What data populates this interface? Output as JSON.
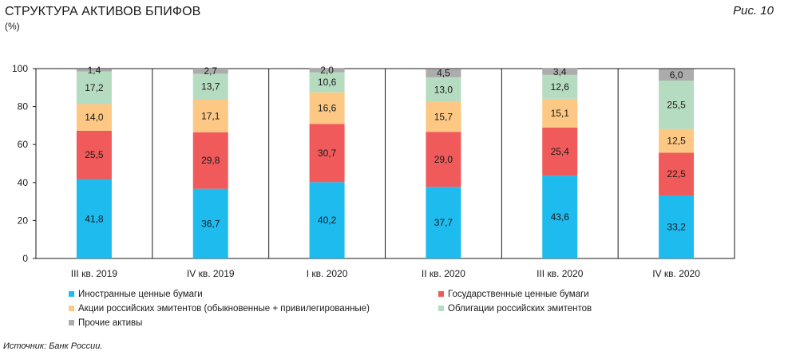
{
  "header": {
    "title": "СТРУКТУРА АКТИВОВ БПИФОВ",
    "unit": "(%)",
    "figure": "Рис. 10"
  },
  "source": "Источник: Банк России.",
  "chart_data": {
    "type": "bar",
    "stacked": true,
    "categories": [
      "III кв. 2019",
      "IV кв. 2019",
      "I кв. 2020",
      "II кв. 2020",
      "III кв. 2020",
      "IV кв. 2020"
    ],
    "series": [
      {
        "name": "Иностранные ценные бумаги",
        "color": "#1ebbef",
        "values": [
          41.8,
          36.7,
          40.2,
          37.7,
          43.6,
          33.2
        ],
        "labels": [
          "41,8",
          "36,7",
          "40,2",
          "37,7",
          "43,6",
          "33,2"
        ]
      },
      {
        "name": "Государственные ценные бумаги",
        "color": "#f15a5a",
        "values": [
          25.5,
          29.8,
          30.7,
          29.0,
          25.4,
          22.5
        ],
        "labels": [
          "25,5",
          "29,8",
          "30,7",
          "29,0",
          "25,4",
          "22,5"
        ]
      },
      {
        "name": "Акции российских эмитентов (обыкновенные + привилегированные)",
        "color": "#fcc884",
        "values": [
          14.0,
          17.1,
          16.6,
          15.7,
          15.1,
          12.5
        ],
        "labels": [
          "14,0",
          "17,1",
          "16,6",
          "15,7",
          "15,1",
          "12,5"
        ]
      },
      {
        "name": "Облигации российских эмитентов",
        "color": "#b5dcc0",
        "values": [
          17.2,
          13.7,
          10.6,
          13.0,
          12.6,
          25.5
        ],
        "labels": [
          "17,2",
          "13,7",
          "10,6",
          "13,0",
          "12,6",
          "25,5"
        ]
      },
      {
        "name": "Прочие активы",
        "color": "#acacac",
        "values": [
          1.4,
          2.7,
          2.0,
          4.5,
          3.4,
          6.0
        ],
        "labels": [
          "1,4",
          "2,7",
          "2,0",
          "4,5",
          "3,4",
          "6,0"
        ]
      }
    ],
    "yticks": [
      "0",
      "20",
      "40",
      "60",
      "80",
      "100"
    ],
    "ylim": [
      0,
      100
    ],
    "grid": false,
    "legend_position": "bottom"
  }
}
